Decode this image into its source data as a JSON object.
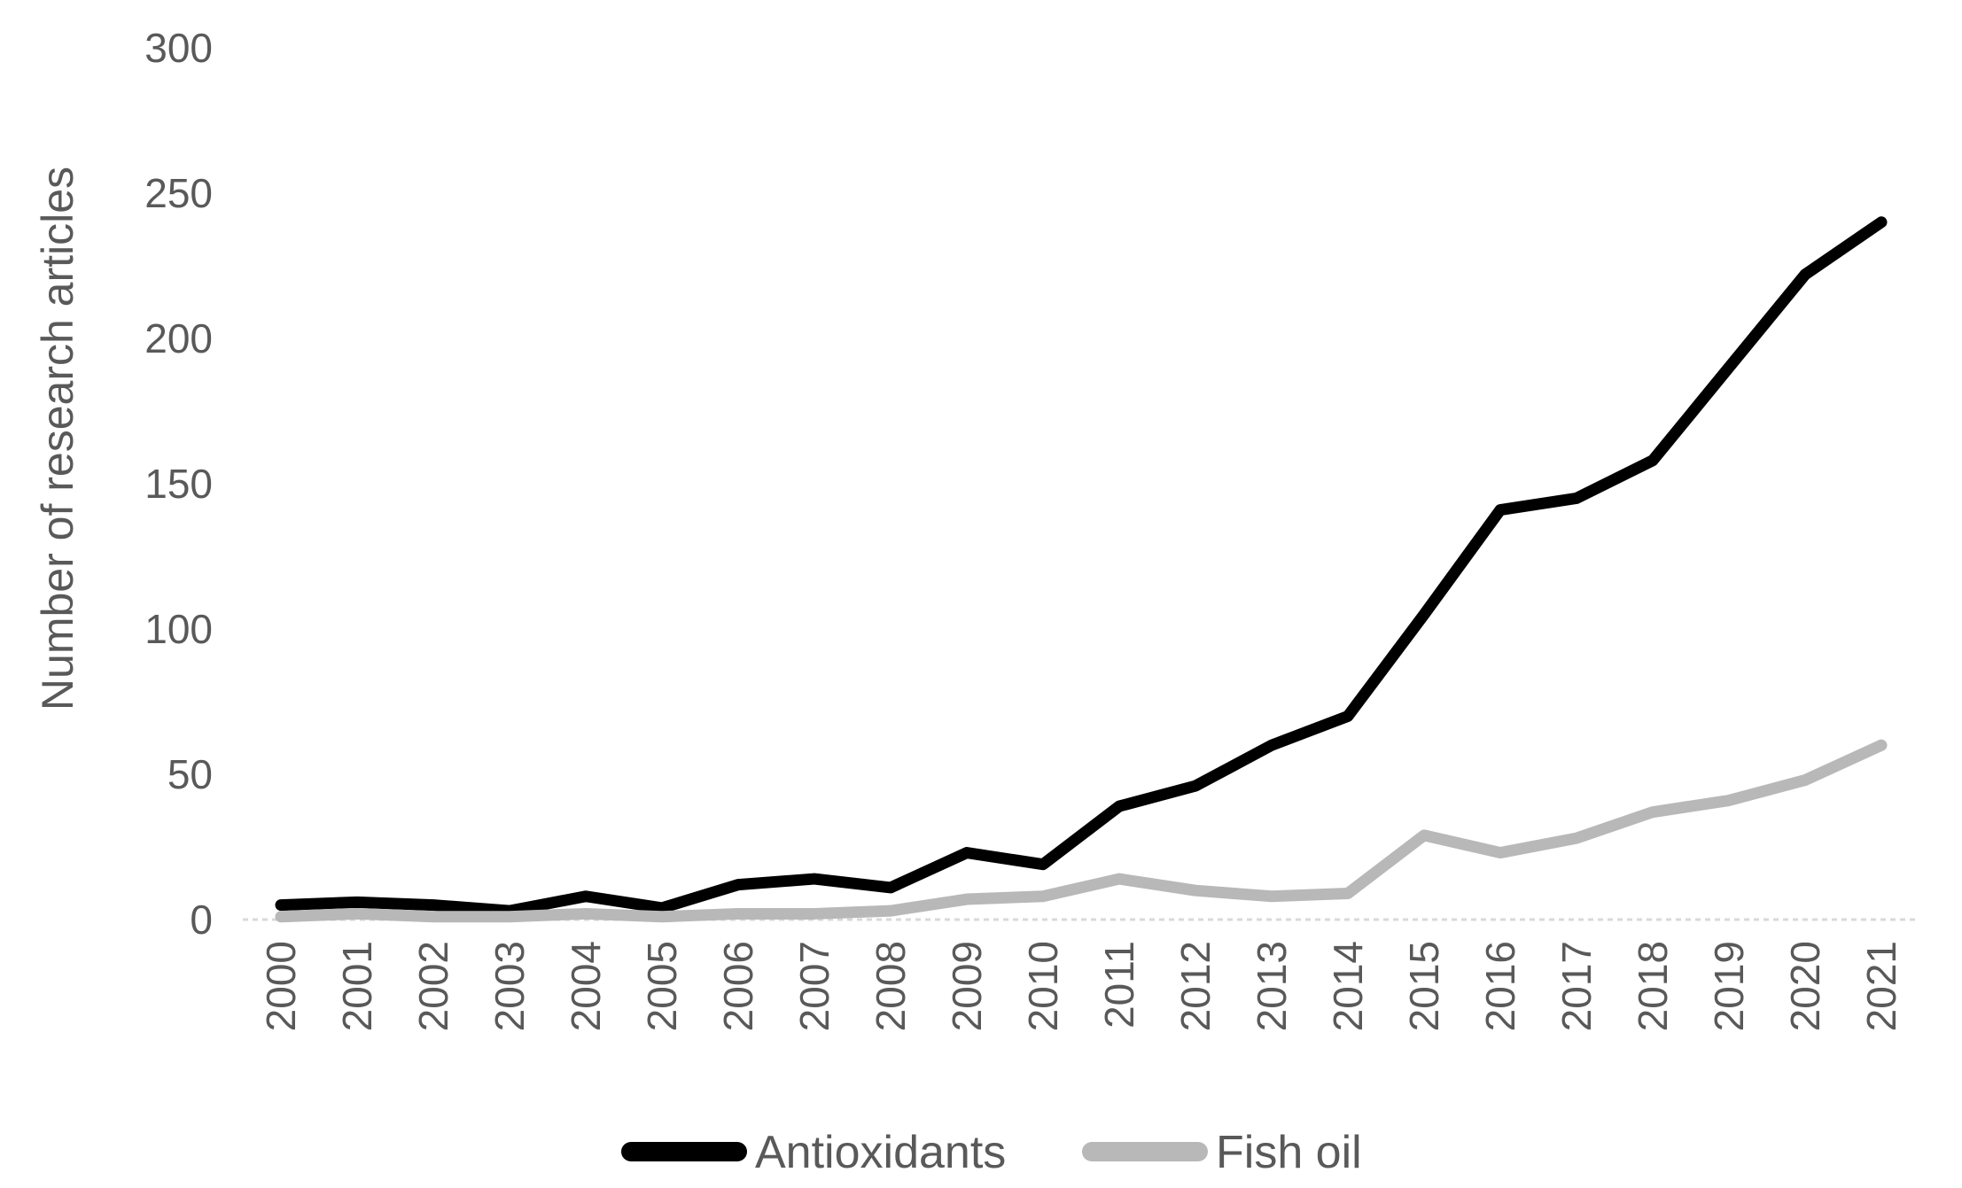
{
  "chart_data": {
    "type": "line",
    "title": "",
    "xlabel": "",
    "ylabel": "Number of research articles",
    "categories": [
      "2000",
      "2001",
      "2002",
      "2003",
      "2004",
      "2005",
      "2006",
      "2007",
      "2008",
      "2009",
      "2010",
      "2011",
      "2012",
      "2013",
      "2014",
      "2015",
      "2016",
      "2017",
      "2018",
      "2019",
      "2020",
      "2021"
    ],
    "series": [
      {
        "name": "Antioxidants",
        "color": "#000000",
        "values": [
          5,
          6,
          5,
          3,
          8,
          4,
          12,
          14,
          11,
          23,
          19,
          39,
          46,
          60,
          70,
          105,
          141,
          145,
          158,
          190,
          222,
          240
        ]
      },
      {
        "name": "Fish oil",
        "color": "#b8b8b8",
        "values": [
          1,
          2,
          1,
          1,
          2,
          1,
          2,
          2,
          3,
          7,
          8,
          14,
          10,
          8,
          9,
          29,
          23,
          28,
          37,
          41,
          48,
          60
        ]
      }
    ],
    "yticks": [
      0,
      50,
      100,
      150,
      200,
      250,
      300
    ],
    "ylim": [
      0,
      300
    ],
    "grid": false,
    "legend_position": "bottom-center",
    "colors": {
      "tick_text": "#595959",
      "axis_title_text": "#595959",
      "legend_text": "#595959",
      "baseline": "#d9d9d9"
    }
  }
}
